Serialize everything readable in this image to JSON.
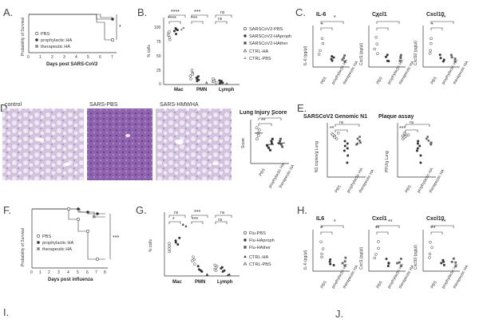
{
  "panels": {
    "A": "A.",
    "B": "B.",
    "C": "C.",
    "D": "D.",
    "E": "E.",
    "F": "F.",
    "G": "G.",
    "H": "H.",
    "I": "I.",
    "J": "J."
  },
  "panelA": {
    "ylabel": "Probability of Survival",
    "xlabel": "Days post SARS-CoV2",
    "legend": [
      "PBS",
      "prophylactic HA",
      "therapeutic HA"
    ],
    "sig": "*"
  },
  "panelB": {
    "ylabel": "% cells",
    "ticks": [
      "100",
      "75",
      "50",
      "25",
      "0"
    ],
    "groups": [
      "Mac",
      "PMN",
      "Lymph"
    ],
    "legend": [
      "SARSCoV2-PBS",
      "SARSCoV2-HAproph",
      "SARSCoV2-HAther",
      "CTRL-HA",
      "CTRL-PBS"
    ],
    "sigs": [
      "****",
      "****",
      "***",
      "***",
      "ns",
      "ns"
    ]
  },
  "panelC": {
    "titles": [
      "IL-6",
      "Cxcl1",
      "Cxcl10"
    ],
    "ylabels": [
      "IL-6 (pg/μl)",
      "Cxcl1 (pg/μl)",
      "Cxcl10 (pg/μl)"
    ],
    "cats": [
      "PBS",
      "prophylactic HA",
      "therapeutic HA"
    ],
    "sigs": [
      "*",
      "*",
      "**",
      "*",
      "**"
    ]
  },
  "panelD": {
    "labels": [
      "control",
      "SARS-PBS",
      "SARS-HMWHA"
    ],
    "score_title": "Lung Injury Score",
    "ylabel": "Score",
    "cats": [
      "PBS",
      "prophylactic HA",
      "therapeutic HA"
    ],
    "sigs": [
      "**",
      "*"
    ]
  },
  "panelE": {
    "titles": [
      "SARSCoV2 Genomic N1",
      "Plaque assay"
    ],
    "ylabels": [
      "N1 copies/g Lung",
      "PFU/g Lung"
    ],
    "cats": [
      "PBS",
      "prophylactic HA",
      "therapeutic HA"
    ],
    "sigs": [
      "ns",
      "**",
      "ns",
      "***"
    ]
  },
  "panelF": {
    "ylabel": "Probability of Survival",
    "xlabel": "Days post influenza",
    "legend": [
      "PBS",
      "prophylactic HA",
      "therapeutic HA"
    ],
    "sig": "***"
  },
  "panelG": {
    "ylabel": "% cells",
    "groups": [
      "Mac",
      "PMN",
      "Lymph"
    ],
    "legend": [
      "Flu-PBS",
      "Flu-HAproph",
      "Flu-HAther",
      "CTRL-HA",
      "CTRL-PBS"
    ],
    "sigs": [
      "ns",
      "*",
      "***",
      "***",
      "ns",
      "ns"
    ]
  },
  "panelH": {
    "titles": [
      "IL6",
      "Cxcl1",
      "Cxcl10"
    ],
    "ylabels": [
      "IL-6 (pg/μl)",
      "Cxcl1 (pg/μl)",
      "Cxcl10 (pg/μl)"
    ],
    "cats": [
      "PBS",
      "prophylactic HA",
      "therapeutic HA"
    ],
    "sigs": [
      "*",
      "*",
      "**",
      "**",
      "**",
      "**"
    ]
  }
}
